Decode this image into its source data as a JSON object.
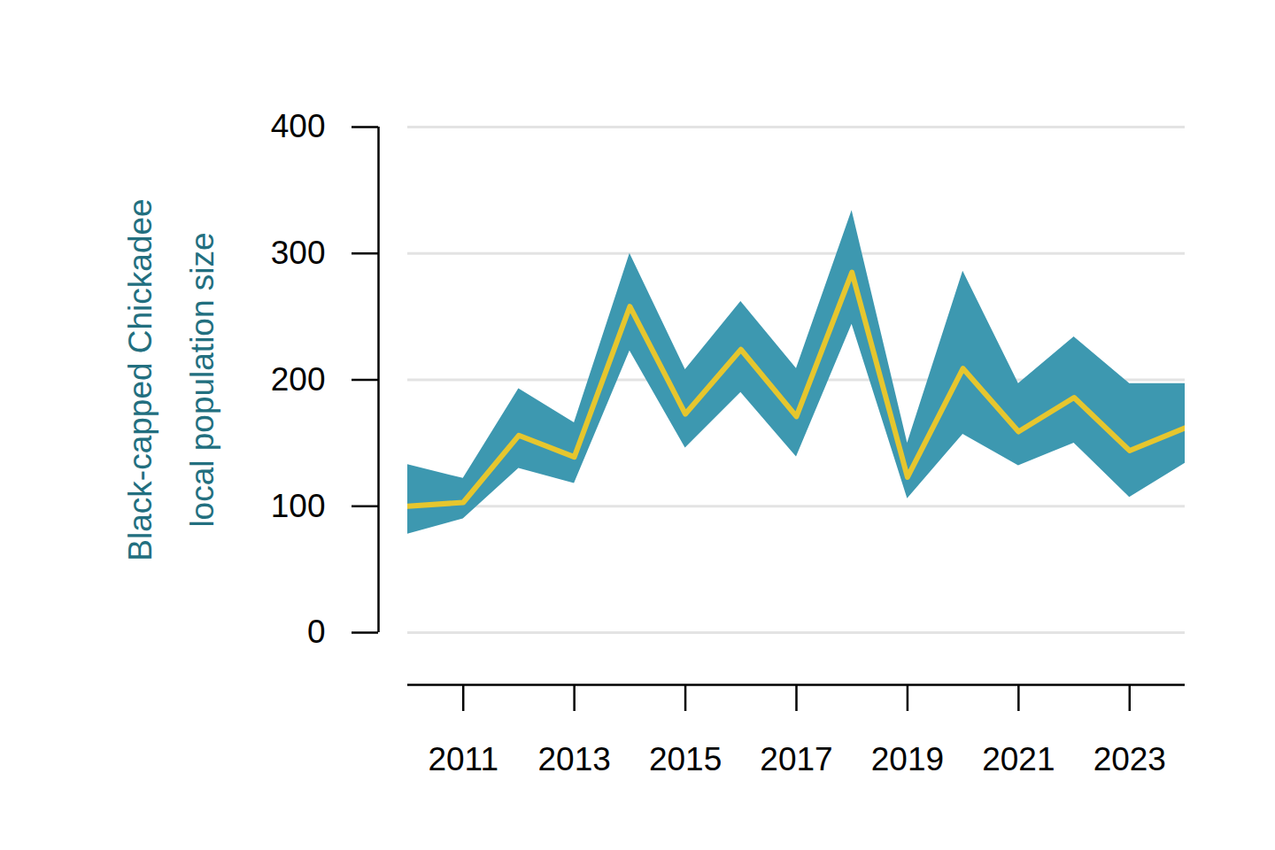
{
  "chart_data": {
    "type": "line",
    "y_label": "Black-capped Chickadee\nlocal population size",
    "x": [
      2010,
      2011,
      2012,
      2013,
      2014,
      2015,
      2016,
      2017,
      2018,
      2019,
      2020,
      2021,
      2022,
      2023,
      2024
    ],
    "series": [
      {
        "type": "area",
        "color": "#3d98b0",
        "lower": [
          78,
          90,
          130,
          118,
          223,
          146,
          190,
          139,
          244,
          106,
          157,
          132,
          150,
          107,
          134
        ],
        "upper": [
          133,
          122,
          193,
          166,
          300,
          208,
          262,
          209,
          334,
          150,
          286,
          197,
          234,
          197,
          197
        ]
      },
      {
        "type": "line",
        "color": "#e6c62e",
        "values": [
          100,
          103,
          156,
          139,
          258,
          173,
          224,
          171,
          285,
          123,
          209,
          159,
          186,
          144,
          162
        ]
      }
    ],
    "xlim": [
      2010,
      2024
    ],
    "xticks": [
      2011,
      2013,
      2015,
      2017,
      2019,
      2021,
      2023
    ],
    "ylim": [
      0,
      400
    ],
    "yticks": [
      0,
      100,
      200,
      300,
      400
    ],
    "grid": true
  }
}
